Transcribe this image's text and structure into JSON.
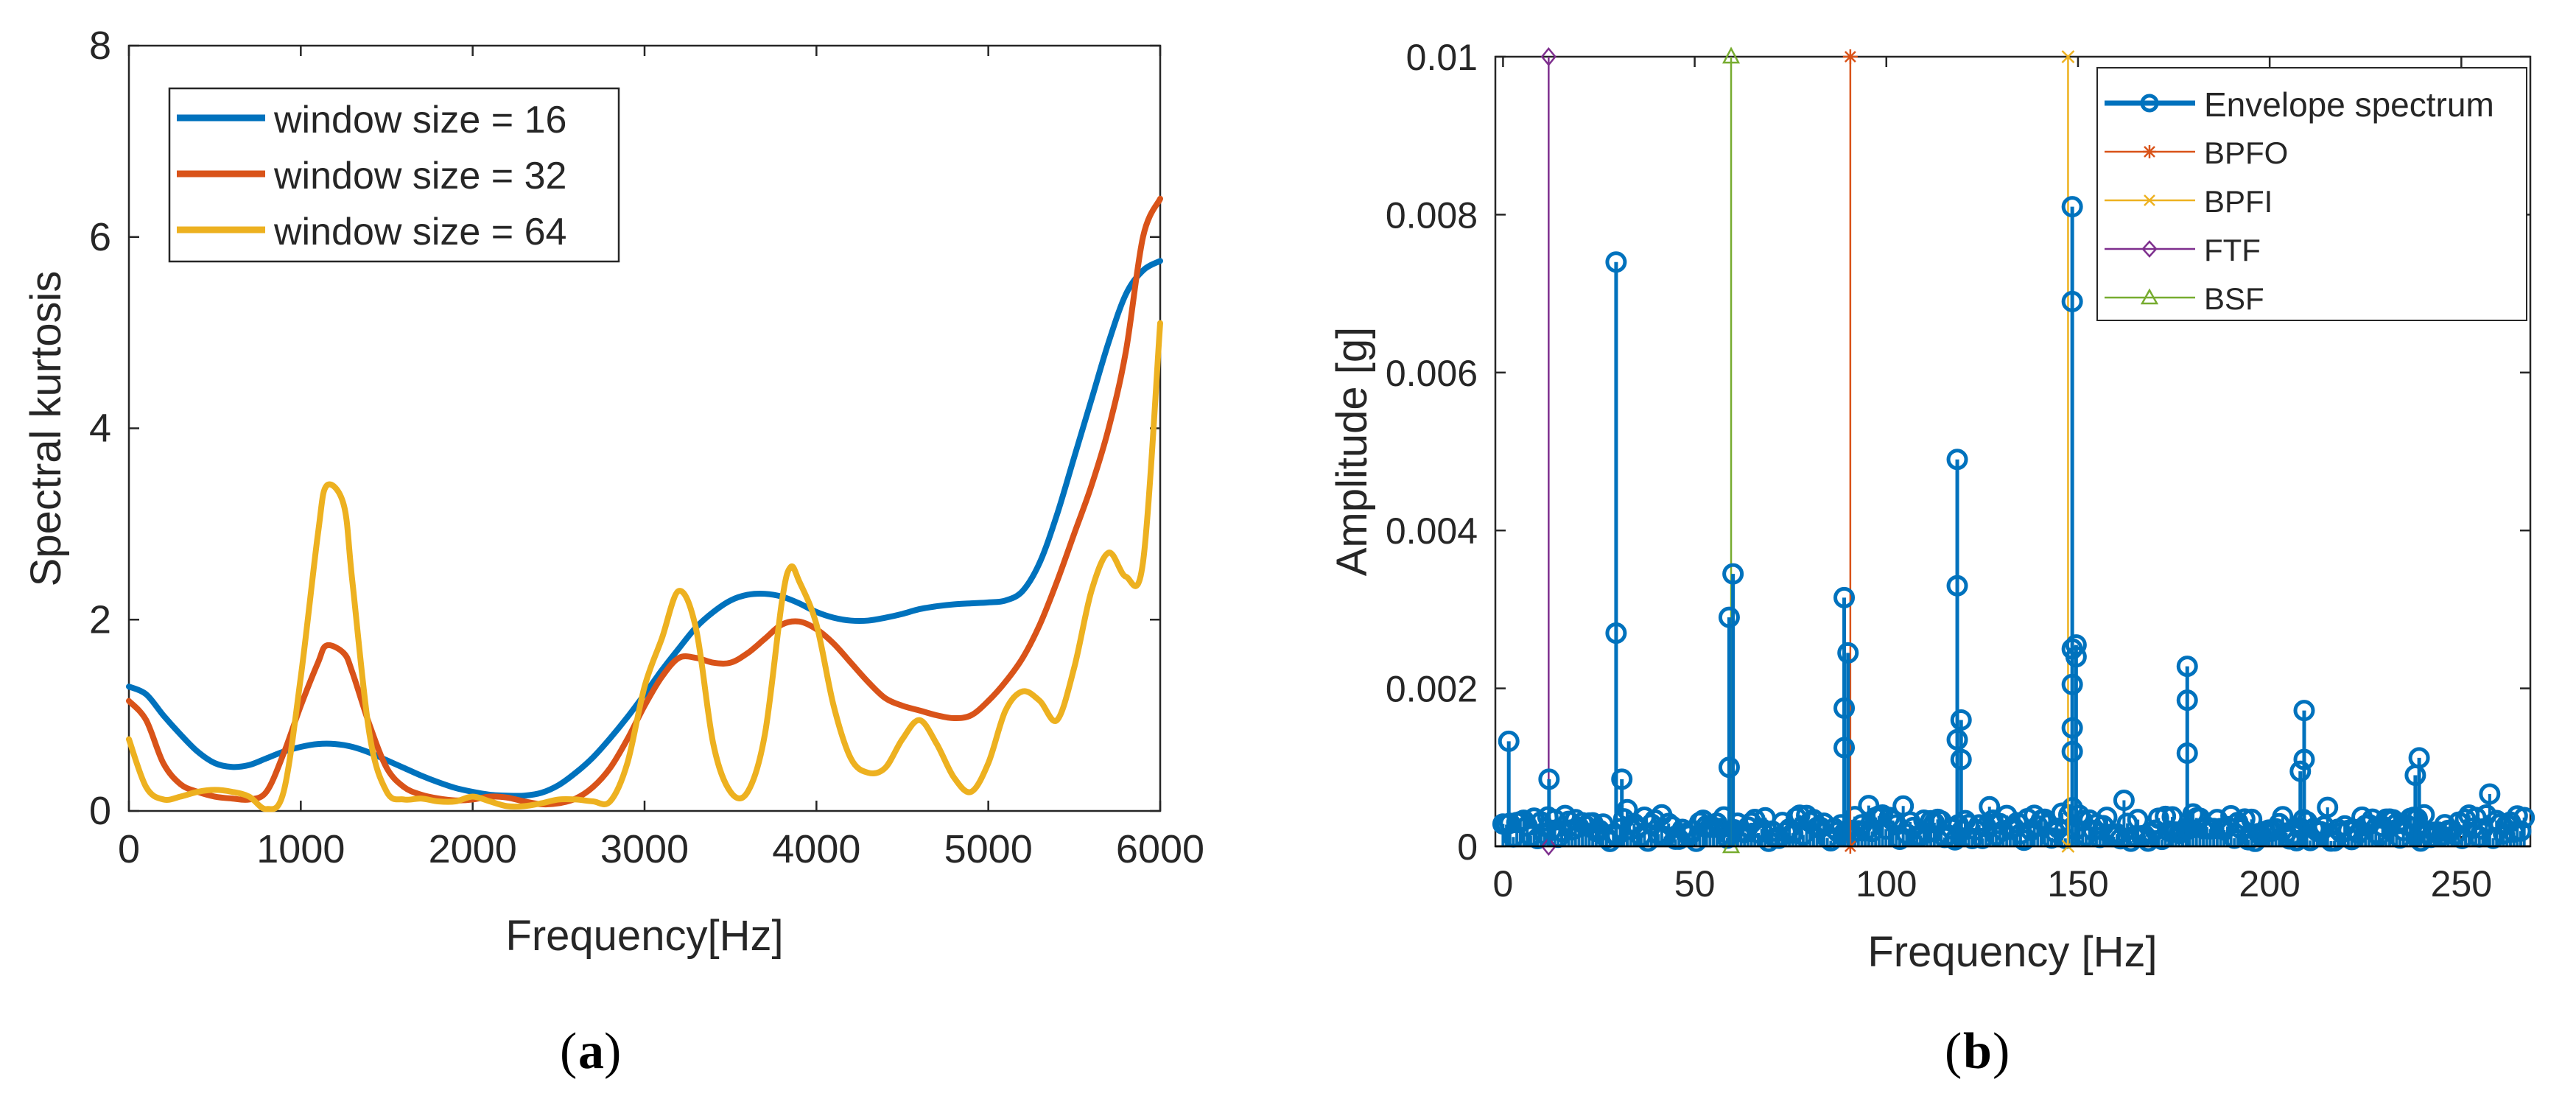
{
  "chart_data": [
    {
      "type": "line",
      "panel_label": "a",
      "xlabel": "Frequency[Hz]",
      "ylabel": "Spectral kurtosis",
      "xlim": [
        0,
        6000
      ],
      "ylim": [
        0,
        8
      ],
      "xticks": [
        0,
        1000,
        2000,
        3000,
        4000,
        5000,
        6000
      ],
      "yticks": [
        0,
        2,
        4,
        6,
        8
      ],
      "legend_position": "top-left",
      "series": [
        {
          "name": "window size = 16",
          "color": "#0072BD",
          "x": [
            0,
            100,
            200,
            300,
            400,
            500,
            600,
            700,
            800,
            900,
            1000,
            1100,
            1200,
            1300,
            1400,
            1500,
            1600,
            1700,
            1800,
            1900,
            2000,
            2100,
            2200,
            2300,
            2400,
            2500,
            2600,
            2700,
            2800,
            2900,
            3000,
            3100,
            3200,
            3300,
            3400,
            3500,
            3600,
            3700,
            3800,
            3900,
            4000,
            4100,
            4200,
            4300,
            4400,
            4500,
            4600,
            4700,
            4800,
            4900,
            5000,
            5100,
            5200,
            5300,
            5400,
            5500,
            5600,
            5700,
            5800,
            5900,
            6000
          ],
          "y": [
            1.3,
            1.22,
            1.0,
            0.8,
            0.62,
            0.5,
            0.46,
            0.48,
            0.55,
            0.62,
            0.67,
            0.7,
            0.7,
            0.67,
            0.61,
            0.53,
            0.45,
            0.37,
            0.3,
            0.24,
            0.2,
            0.17,
            0.16,
            0.16,
            0.19,
            0.27,
            0.4,
            0.56,
            0.76,
            0.98,
            1.22,
            1.47,
            1.7,
            1.92,
            2.08,
            2.2,
            2.26,
            2.27,
            2.24,
            2.17,
            2.08,
            2.02,
            1.99,
            1.99,
            2.02,
            2.06,
            2.11,
            2.14,
            2.16,
            2.17,
            2.18,
            2.2,
            2.3,
            2.6,
            3.1,
            3.7,
            4.3,
            4.9,
            5.4,
            5.65,
            5.75
          ]
        },
        {
          "name": "window size = 32",
          "color": "#D95319",
          "x": [
            0,
            100,
            200,
            300,
            400,
            500,
            600,
            700,
            800,
            900,
            1000,
            1100,
            1150,
            1250,
            1300,
            1400,
            1500,
            1600,
            1700,
            1800,
            1900,
            2000,
            2100,
            2200,
            2300,
            2400,
            2500,
            2600,
            2700,
            2800,
            2900,
            3000,
            3100,
            3200,
            3300,
            3400,
            3500,
            3600,
            3700,
            3800,
            3900,
            4000,
            4100,
            4200,
            4300,
            4400,
            4500,
            4600,
            4700,
            4800,
            4900,
            5000,
            5100,
            5200,
            5300,
            5400,
            5500,
            5600,
            5700,
            5800,
            5900,
            6000
          ],
          "y": [
            1.15,
            0.95,
            0.5,
            0.28,
            0.2,
            0.15,
            0.13,
            0.12,
            0.2,
            0.6,
            1.1,
            1.55,
            1.73,
            1.65,
            1.45,
            0.9,
            0.45,
            0.25,
            0.17,
            0.13,
            0.11,
            0.12,
            0.15,
            0.14,
            0.1,
            0.07,
            0.08,
            0.13,
            0.25,
            0.45,
            0.75,
            1.1,
            1.4,
            1.6,
            1.6,
            1.55,
            1.55,
            1.65,
            1.8,
            1.95,
            1.98,
            1.9,
            1.75,
            1.55,
            1.35,
            1.18,
            1.1,
            1.05,
            1.0,
            0.97,
            1.0,
            1.15,
            1.35,
            1.6,
            1.95,
            2.4,
            2.9,
            3.4,
            4.0,
            4.8,
            6.0,
            6.4
          ]
        },
        {
          "name": "window size = 64",
          "color": "#EDB120",
          "x": [
            0,
            100,
            200,
            300,
            400,
            500,
            600,
            700,
            800,
            900,
            1000,
            1100,
            1150,
            1250,
            1300,
            1400,
            1500,
            1600,
            1700,
            1800,
            1900,
            2000,
            2100,
            2200,
            2300,
            2400,
            2500,
            2600,
            2700,
            2800,
            2900,
            3000,
            3100,
            3200,
            3300,
            3400,
            3500,
            3600,
            3700,
            3800,
            3850,
            3900,
            4000,
            4100,
            4200,
            4300,
            4400,
            4500,
            4600,
            4700,
            4800,
            4900,
            5000,
            5100,
            5200,
            5300,
            5400,
            5500,
            5600,
            5700,
            5800,
            5900,
            6000
          ],
          "y": [
            0.75,
            0.25,
            0.12,
            0.15,
            0.2,
            0.22,
            0.2,
            0.15,
            0.02,
            0.2,
            1.4,
            2.9,
            3.4,
            3.2,
            2.4,
            0.8,
            0.2,
            0.12,
            0.13,
            0.1,
            0.1,
            0.15,
            0.1,
            0.05,
            0.05,
            0.08,
            0.12,
            0.12,
            0.1,
            0.1,
            0.5,
            1.3,
            1.8,
            2.3,
            1.9,
            0.7,
            0.2,
            0.2,
            0.8,
            2.2,
            2.55,
            2.4,
            1.95,
            1.1,
            0.55,
            0.4,
            0.45,
            0.75,
            0.95,
            0.7,
            0.35,
            0.2,
            0.5,
            1.05,
            1.25,
            1.15,
            0.95,
            1.5,
            2.3,
            2.7,
            2.45,
            2.6,
            5.1
          ]
        }
      ]
    },
    {
      "type": "stem",
      "panel_label": "b",
      "xlabel": "Frequency [Hz]",
      "ylabel": "Amplitude [g]",
      "xlim": [
        -2,
        268
      ],
      "ylim": [
        0,
        0.01
      ],
      "xticks": [
        0,
        50,
        100,
        150,
        200,
        250
      ],
      "yticks": [
        "0",
        "0.002",
        "0.004",
        "0.006",
        "0.008",
        "0.01"
      ],
      "legend_position": "top-right",
      "series": [
        {
          "name": "Envelope spectrum",
          "color": "#0072BD",
          "marker": "circle",
          "peaks": [
            {
              "x": 1.5,
              "y": [
                0.00133
              ]
            },
            {
              "x": 12,
              "y": [
                0.00085
              ]
            },
            {
              "x": 29.5,
              "y": [
                0.0074,
                0.0027
              ]
            },
            {
              "x": 31,
              "y": [
                0.00085
              ]
            },
            {
              "x": 59,
              "y": [
                0.0029,
                0.001
              ]
            },
            {
              "x": 60,
              "y": [
                0.00345
              ]
            },
            {
              "x": 89,
              "y": [
                0.00315,
                0.00175,
                0.00125
              ]
            },
            {
              "x": 90,
              "y": [
                0.00245
              ]
            },
            {
              "x": 118.5,
              "y": [
                0.0049,
                0.0033,
                0.00135
              ]
            },
            {
              "x": 119.5,
              "y": [
                0.0016,
                0.0011
              ]
            },
            {
              "x": 148.5,
              "y": [
                0.0081,
                0.0069,
                0.0025,
                0.00205,
                0.0015,
                0.0012
              ]
            },
            {
              "x": 149.5,
              "y": [
                0.00255,
                0.0024
              ]
            },
            {
              "x": 178.5,
              "y": [
                0.00228,
                0.00185,
                0.00118
              ]
            },
            {
              "x": 208,
              "y": [
                0.00095
              ]
            },
            {
              "x": 209,
              "y": [
                0.00172,
                0.0011
              ]
            },
            {
              "x": 238,
              "y": [
                0.0009
              ]
            },
            {
              "x": 239,
              "y": [
                0.00112
              ]
            }
          ],
          "noise_floor": 0.0004
        },
        {
          "name": "BPFO",
          "color": "#D95319",
          "marker": "star",
          "x": 90.6
        },
        {
          "name": "BPFI",
          "color": "#EDB120",
          "marker": "x",
          "x": 147.4
        },
        {
          "name": "FTF",
          "color": "#7E2F8E",
          "marker": "diamond",
          "x": 11.9
        },
        {
          "name": "BSF",
          "color": "#77AC30",
          "marker": "triangle",
          "x": 59.5
        }
      ]
    }
  ]
}
